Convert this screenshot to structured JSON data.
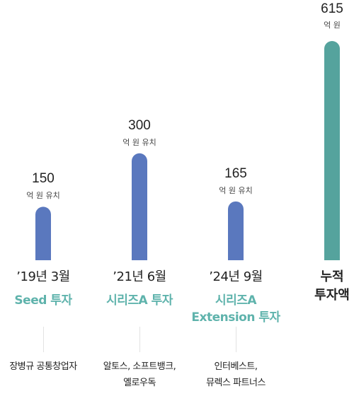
{
  "chart_data": {
    "type": "bar",
    "unit": "억 원",
    "colors": {
      "round_bar": "#5a78be",
      "total_bar": "#55a39d",
      "round_label": "#5fb3ac"
    },
    "rounds": [
      {
        "amount": 150,
        "unit_label": "억 원 유치",
        "date": "’19년 3월",
        "round_lines": [
          "Seed 투자"
        ],
        "investor_lines": [
          "장병규 공통창업자"
        ]
      },
      {
        "amount": 300,
        "unit_label": "억 원 유치",
        "date": "’21년 6월",
        "round_lines": [
          "시리즈A 투자"
        ],
        "investor_lines": [
          "알토스, 소프트뱅크,",
          "옐로우독"
        ]
      },
      {
        "amount": 165,
        "unit_label": "억 원 유치",
        "date": "’24년 9월",
        "round_lines": [
          "시리즈A",
          "Extension 투자"
        ],
        "investor_lines": [
          "인터베스트,",
          "뮤렉스 파트너스"
        ]
      }
    ],
    "total": {
      "amount": 615,
      "unit_label": "억 원",
      "label_lines": [
        "누적",
        "투자액"
      ]
    }
  }
}
